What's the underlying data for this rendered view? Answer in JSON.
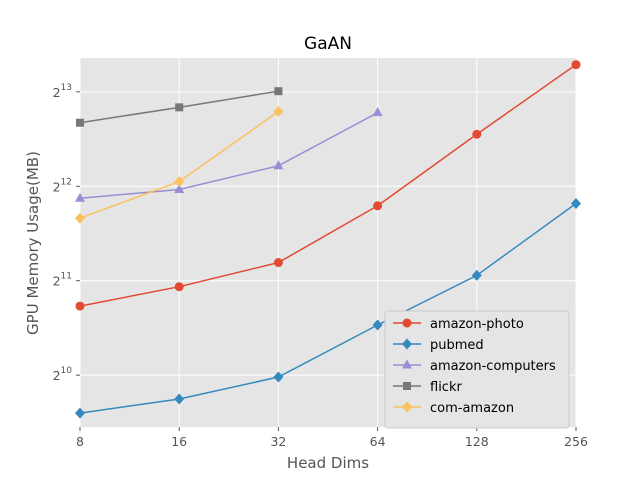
{
  "chart_data": {
    "type": "line",
    "title": "GaAN",
    "xlabel": "Head Dims",
    "ylabel": "GPU Memory Usage(MB)",
    "x_scale": "log2",
    "y_scale": "log2",
    "x": [
      8,
      16,
      32,
      64,
      128,
      256
    ],
    "x_tick_labels": [
      "8",
      "16",
      "32",
      "64",
      "128",
      "256"
    ],
    "xlim": [
      8,
      256
    ],
    "y_ticks": [
      {
        "base": "2",
        "exp": "10",
        "value": 1024
      },
      {
        "base": "2",
        "exp": "11",
        "value": 2048
      },
      {
        "base": "2",
        "exp": "12",
        "value": 4096
      },
      {
        "base": "2",
        "exp": "13",
        "value": 8192
      }
    ],
    "ylim": [
      700,
      10500
    ],
    "grid": true,
    "legend_position": "lower-right",
    "background_color": "#e5e5e5",
    "series": [
      {
        "name": "amazon-photo",
        "color": "#e24a33",
        "marker": "circle",
        "values": [
          1700,
          1960,
          2340,
          3550,
          6000,
          10000
        ]
      },
      {
        "name": "pubmed",
        "color": "#348abd",
        "marker": "diamond",
        "values": [
          775,
          860,
          1010,
          1480,
          2130,
          3610
        ]
      },
      {
        "name": "amazon-computers",
        "color": "#988ed5",
        "marker": "triangle",
        "values": [
          3750,
          4000,
          4760,
          7030,
          null,
          null
        ]
      },
      {
        "name": "flickr",
        "color": "#777777",
        "marker": "square",
        "values": [
          6530,
          7310,
          8230,
          null,
          null,
          null
        ]
      },
      {
        "name": "com-amazon",
        "color": "#fbc15e",
        "marker": "diamond",
        "values": [
          3240,
          4240,
          7090,
          null,
          null,
          null
        ]
      }
    ]
  }
}
